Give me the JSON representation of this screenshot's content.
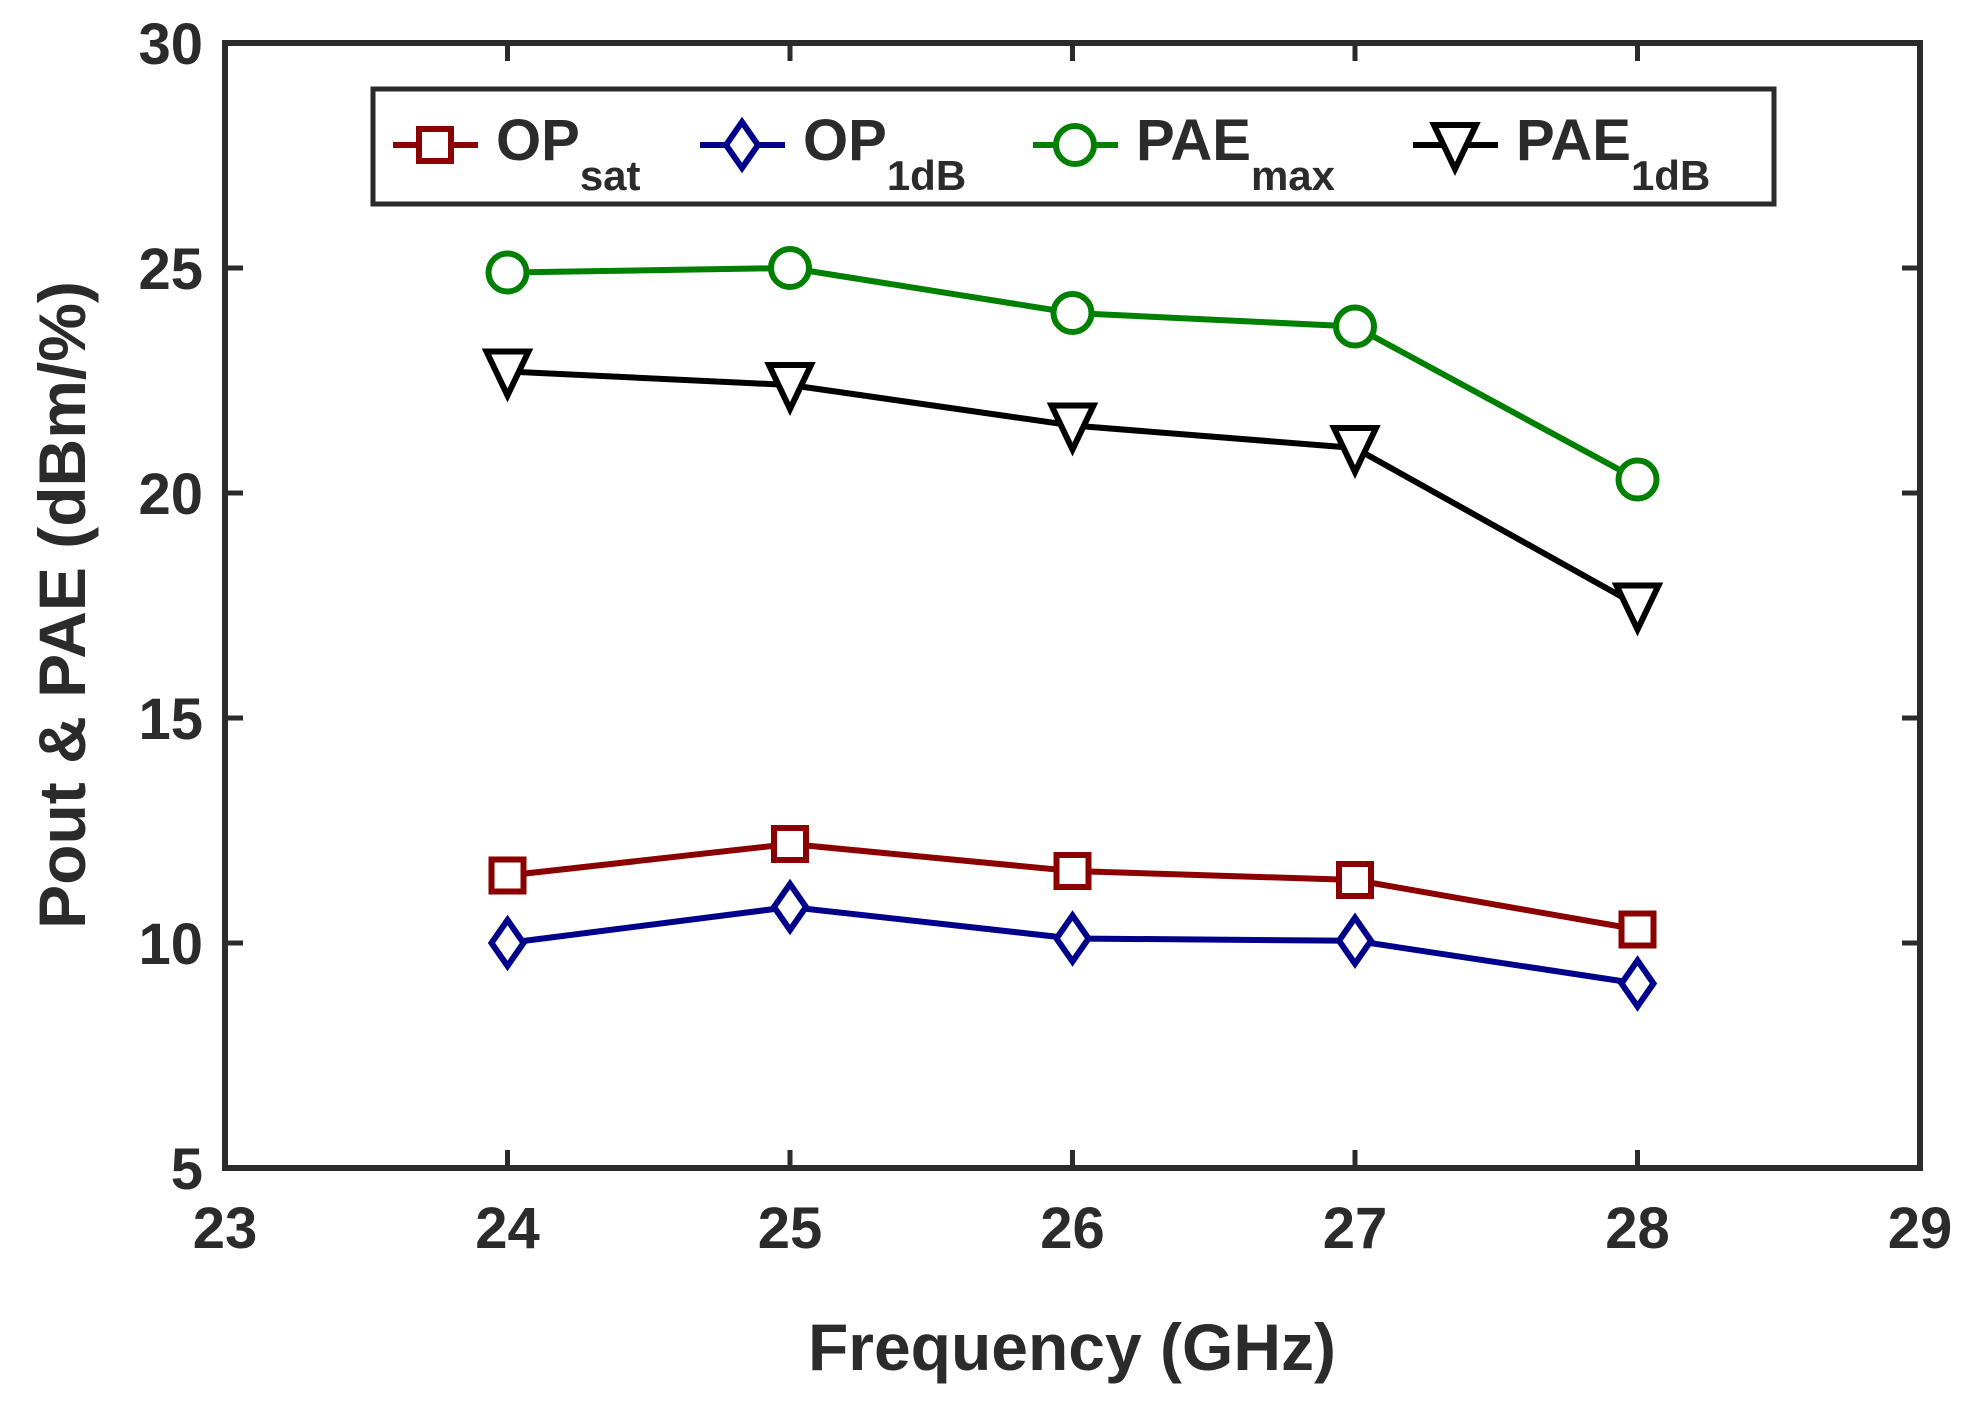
{
  "chart_data": {
    "type": "line",
    "title": "",
    "xlabel": "Frequency (GHz)",
    "ylabel": "Pout & PAE (dBm/%)",
    "xlim": [
      23,
      29
    ],
    "ylim": [
      5,
      30
    ],
    "xticks": [
      23,
      24,
      25,
      26,
      27,
      28,
      29
    ],
    "yticks": [
      5,
      10,
      15,
      20,
      25,
      30
    ],
    "grid": false,
    "legend_position": "top",
    "x": [
      24,
      25,
      26,
      27,
      28
    ],
    "series": [
      {
        "name": "OPsat",
        "base": "OP",
        "sub": "sat",
        "marker": "square",
        "color": "#8b0000",
        "values": [
          11.5,
          12.2,
          11.6,
          11.4,
          10.3
        ]
      },
      {
        "name": "OP1dB",
        "base": "OP",
        "sub": "1dB",
        "marker": "diamond",
        "color": "#00008b",
        "values": [
          10.0,
          10.8,
          10.1,
          10.05,
          9.1
        ]
      },
      {
        "name": "PAEmax",
        "base": "PAE",
        "sub": "max",
        "marker": "circle",
        "color": "#008000",
        "values": [
          24.9,
          25.0,
          24.0,
          23.7,
          20.3
        ]
      },
      {
        "name": "PAE1dB",
        "base": "PAE",
        "sub": "1dB",
        "marker": "triangle-down",
        "color": "#000000",
        "values": [
          22.7,
          22.4,
          21.5,
          21.0,
          17.5
        ]
      }
    ]
  }
}
